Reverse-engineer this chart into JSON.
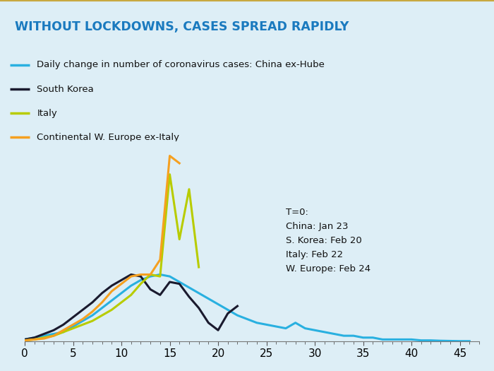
{
  "title": "WITHOUT LOCKDOWNS, CASES SPREAD RAPIDLY",
  "title_color": "#1a7abf",
  "top_bar_color": "#ffffff",
  "background_color": "#ddeef6",
  "legend": [
    {
      "label": "Daily change in number of coronavirus cases: China ex-Hube",
      "color": "#29b0e0"
    },
    {
      "label": "South Korea",
      "color": "#1a1a2e"
    },
    {
      "label": "Italy",
      "color": "#b8cc00"
    },
    {
      "label": "Continental W. Europe ex-Italy",
      "color": "#f5a020"
    }
  ],
  "annotation": "T=0:\nChina: Jan 23\nS. Korea: Feb 20\nItaly: Feb 22\nW. Europe: Feb 24",
  "xlim": [
    0,
    47
  ],
  "ylim": [
    0,
    1.08
  ],
  "xticks": [
    0,
    5,
    10,
    15,
    20,
    25,
    30,
    35,
    40,
    45
  ],
  "china_x": [
    0,
    1,
    2,
    3,
    4,
    5,
    6,
    7,
    8,
    9,
    10,
    11,
    12,
    13,
    14,
    15,
    16,
    17,
    18,
    19,
    20,
    21,
    22,
    23,
    24,
    25,
    26,
    27,
    28,
    29,
    30,
    31,
    32,
    33,
    34,
    35,
    36,
    37,
    38,
    39,
    40,
    41,
    42,
    43,
    44,
    45,
    46
  ],
  "china_y": [
    0.01,
    0.02,
    0.03,
    0.04,
    0.05,
    0.08,
    0.11,
    0.14,
    0.18,
    0.22,
    0.26,
    0.3,
    0.33,
    0.35,
    0.36,
    0.35,
    0.32,
    0.29,
    0.26,
    0.23,
    0.2,
    0.17,
    0.14,
    0.12,
    0.1,
    0.09,
    0.08,
    0.07,
    0.1,
    0.07,
    0.06,
    0.05,
    0.04,
    0.03,
    0.03,
    0.02,
    0.02,
    0.01,
    0.01,
    0.01,
    0.01,
    0.005,
    0.005,
    0.003,
    0.002,
    0.001,
    0.001
  ],
  "korea_x": [
    0,
    1,
    2,
    3,
    4,
    5,
    6,
    7,
    8,
    9,
    10,
    11,
    12,
    13,
    14,
    15,
    16,
    17,
    18,
    19,
    20,
    21,
    22
  ],
  "korea_y": [
    0.01,
    0.02,
    0.04,
    0.06,
    0.09,
    0.13,
    0.17,
    0.21,
    0.26,
    0.3,
    0.33,
    0.36,
    0.35,
    0.28,
    0.25,
    0.32,
    0.31,
    0.24,
    0.18,
    0.1,
    0.06,
    0.15,
    0.19
  ],
  "italy_x": [
    0,
    1,
    2,
    3,
    4,
    5,
    6,
    7,
    8,
    9,
    10,
    11,
    12,
    13,
    14,
    15,
    16,
    17,
    18
  ],
  "italy_y": [
    0.005,
    0.01,
    0.02,
    0.03,
    0.05,
    0.07,
    0.09,
    0.11,
    0.14,
    0.17,
    0.21,
    0.25,
    0.31,
    0.36,
    0.35,
    0.9,
    0.55,
    0.82,
    0.4
  ],
  "europe_x": [
    0,
    1,
    2,
    3,
    4,
    5,
    6,
    7,
    8,
    9,
    10,
    11,
    12,
    13,
    14,
    15,
    16
  ],
  "europe_y": [
    0.005,
    0.01,
    0.015,
    0.03,
    0.06,
    0.09,
    0.12,
    0.16,
    0.21,
    0.27,
    0.31,
    0.35,
    0.36,
    0.36,
    0.44,
    1.0,
    0.96
  ]
}
